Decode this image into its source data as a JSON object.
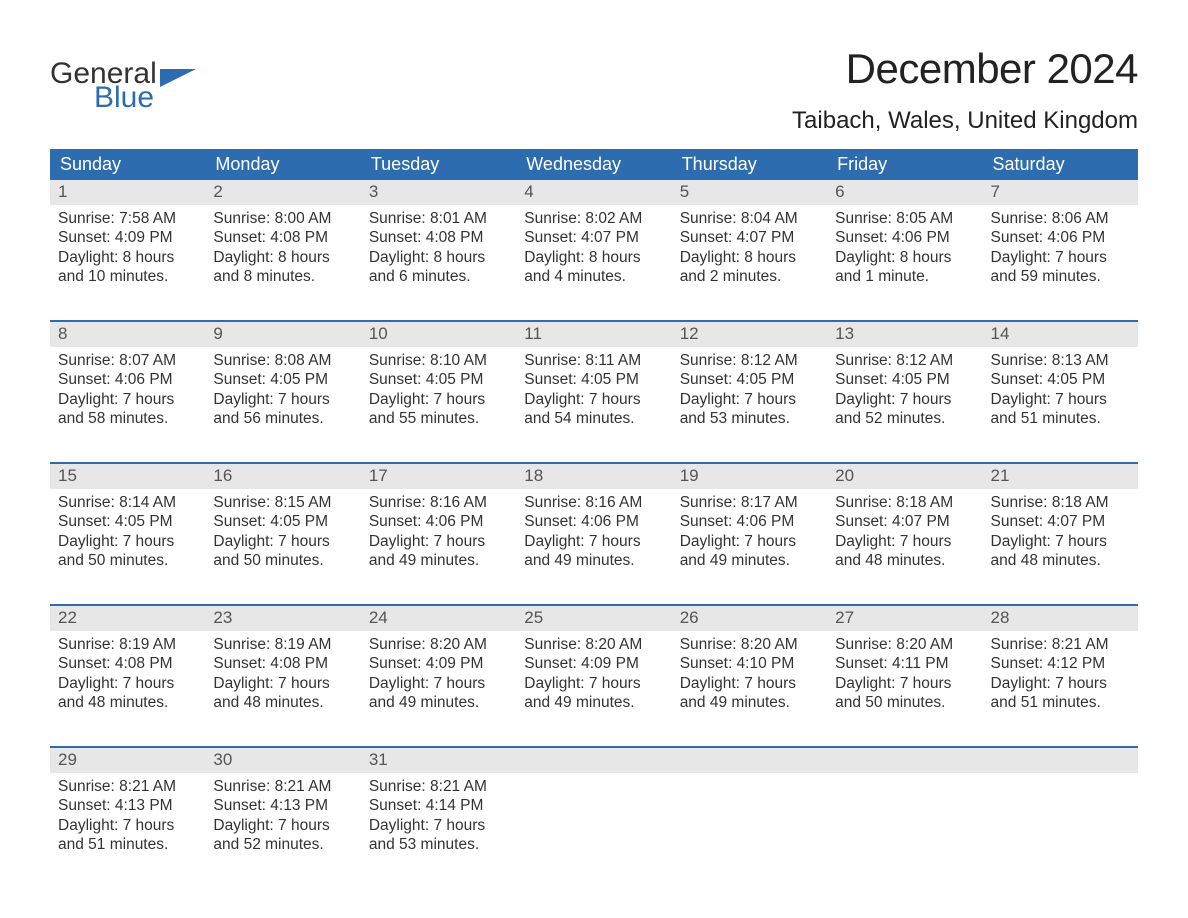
{
  "logo": {
    "text_general": "General",
    "text_blue": "Blue",
    "general_color": "#333333",
    "blue_color": "#2e6cb0"
  },
  "title": "December 2024",
  "location": "Taibach, Wales, United Kingdom",
  "colors": {
    "header_bg": "#2e6cb0",
    "header_text": "#ffffff",
    "daynum_bg": "#e7e7e7",
    "daynum_text": "#555555",
    "body_text": "#333333",
    "row_border": "#2e6cb0",
    "background": "#ffffff"
  },
  "fonts": {
    "title_size": 42,
    "location_size": 24,
    "dayheader_size": 18,
    "daynum_size": 17,
    "content_size": 15.5
  },
  "day_headers": [
    "Sunday",
    "Monday",
    "Tuesday",
    "Wednesday",
    "Thursday",
    "Friday",
    "Saturday"
  ],
  "weeks": [
    [
      {
        "day": "1",
        "sunrise": "Sunrise: 7:58 AM",
        "sunset": "Sunset: 4:09 PM",
        "dl1": "Daylight: 8 hours",
        "dl2": "and 10 minutes."
      },
      {
        "day": "2",
        "sunrise": "Sunrise: 8:00 AM",
        "sunset": "Sunset: 4:08 PM",
        "dl1": "Daylight: 8 hours",
        "dl2": "and 8 minutes."
      },
      {
        "day": "3",
        "sunrise": "Sunrise: 8:01 AM",
        "sunset": "Sunset: 4:08 PM",
        "dl1": "Daylight: 8 hours",
        "dl2": "and 6 minutes."
      },
      {
        "day": "4",
        "sunrise": "Sunrise: 8:02 AM",
        "sunset": "Sunset: 4:07 PM",
        "dl1": "Daylight: 8 hours",
        "dl2": "and 4 minutes."
      },
      {
        "day": "5",
        "sunrise": "Sunrise: 8:04 AM",
        "sunset": "Sunset: 4:07 PM",
        "dl1": "Daylight: 8 hours",
        "dl2": "and 2 minutes."
      },
      {
        "day": "6",
        "sunrise": "Sunrise: 8:05 AM",
        "sunset": "Sunset: 4:06 PM",
        "dl1": "Daylight: 8 hours",
        "dl2": "and 1 minute."
      },
      {
        "day": "7",
        "sunrise": "Sunrise: 8:06 AM",
        "sunset": "Sunset: 4:06 PM",
        "dl1": "Daylight: 7 hours",
        "dl2": "and 59 minutes."
      }
    ],
    [
      {
        "day": "8",
        "sunrise": "Sunrise: 8:07 AM",
        "sunset": "Sunset: 4:06 PM",
        "dl1": "Daylight: 7 hours",
        "dl2": "and 58 minutes."
      },
      {
        "day": "9",
        "sunrise": "Sunrise: 8:08 AM",
        "sunset": "Sunset: 4:05 PM",
        "dl1": "Daylight: 7 hours",
        "dl2": "and 56 minutes."
      },
      {
        "day": "10",
        "sunrise": "Sunrise: 8:10 AM",
        "sunset": "Sunset: 4:05 PM",
        "dl1": "Daylight: 7 hours",
        "dl2": "and 55 minutes."
      },
      {
        "day": "11",
        "sunrise": "Sunrise: 8:11 AM",
        "sunset": "Sunset: 4:05 PM",
        "dl1": "Daylight: 7 hours",
        "dl2": "and 54 minutes."
      },
      {
        "day": "12",
        "sunrise": "Sunrise: 8:12 AM",
        "sunset": "Sunset: 4:05 PM",
        "dl1": "Daylight: 7 hours",
        "dl2": "and 53 minutes."
      },
      {
        "day": "13",
        "sunrise": "Sunrise: 8:12 AM",
        "sunset": "Sunset: 4:05 PM",
        "dl1": "Daylight: 7 hours",
        "dl2": "and 52 minutes."
      },
      {
        "day": "14",
        "sunrise": "Sunrise: 8:13 AM",
        "sunset": "Sunset: 4:05 PM",
        "dl1": "Daylight: 7 hours",
        "dl2": "and 51 minutes."
      }
    ],
    [
      {
        "day": "15",
        "sunrise": "Sunrise: 8:14 AM",
        "sunset": "Sunset: 4:05 PM",
        "dl1": "Daylight: 7 hours",
        "dl2": "and 50 minutes."
      },
      {
        "day": "16",
        "sunrise": "Sunrise: 8:15 AM",
        "sunset": "Sunset: 4:05 PM",
        "dl1": "Daylight: 7 hours",
        "dl2": "and 50 minutes."
      },
      {
        "day": "17",
        "sunrise": "Sunrise: 8:16 AM",
        "sunset": "Sunset: 4:06 PM",
        "dl1": "Daylight: 7 hours",
        "dl2": "and 49 minutes."
      },
      {
        "day": "18",
        "sunrise": "Sunrise: 8:16 AM",
        "sunset": "Sunset: 4:06 PM",
        "dl1": "Daylight: 7 hours",
        "dl2": "and 49 minutes."
      },
      {
        "day": "19",
        "sunrise": "Sunrise: 8:17 AM",
        "sunset": "Sunset: 4:06 PM",
        "dl1": "Daylight: 7 hours",
        "dl2": "and 49 minutes."
      },
      {
        "day": "20",
        "sunrise": "Sunrise: 8:18 AM",
        "sunset": "Sunset: 4:07 PM",
        "dl1": "Daylight: 7 hours",
        "dl2": "and 48 minutes."
      },
      {
        "day": "21",
        "sunrise": "Sunrise: 8:18 AM",
        "sunset": "Sunset: 4:07 PM",
        "dl1": "Daylight: 7 hours",
        "dl2": "and 48 minutes."
      }
    ],
    [
      {
        "day": "22",
        "sunrise": "Sunrise: 8:19 AM",
        "sunset": "Sunset: 4:08 PM",
        "dl1": "Daylight: 7 hours",
        "dl2": "and 48 minutes."
      },
      {
        "day": "23",
        "sunrise": "Sunrise: 8:19 AM",
        "sunset": "Sunset: 4:08 PM",
        "dl1": "Daylight: 7 hours",
        "dl2": "and 48 minutes."
      },
      {
        "day": "24",
        "sunrise": "Sunrise: 8:20 AM",
        "sunset": "Sunset: 4:09 PM",
        "dl1": "Daylight: 7 hours",
        "dl2": "and 49 minutes."
      },
      {
        "day": "25",
        "sunrise": "Sunrise: 8:20 AM",
        "sunset": "Sunset: 4:09 PM",
        "dl1": "Daylight: 7 hours",
        "dl2": "and 49 minutes."
      },
      {
        "day": "26",
        "sunrise": "Sunrise: 8:20 AM",
        "sunset": "Sunset: 4:10 PM",
        "dl1": "Daylight: 7 hours",
        "dl2": "and 49 minutes."
      },
      {
        "day": "27",
        "sunrise": "Sunrise: 8:20 AM",
        "sunset": "Sunset: 4:11 PM",
        "dl1": "Daylight: 7 hours",
        "dl2": "and 50 minutes."
      },
      {
        "day": "28",
        "sunrise": "Sunrise: 8:21 AM",
        "sunset": "Sunset: 4:12 PM",
        "dl1": "Daylight: 7 hours",
        "dl2": "and 51 minutes."
      }
    ],
    [
      {
        "day": "29",
        "sunrise": "Sunrise: 8:21 AM",
        "sunset": "Sunset: 4:13 PM",
        "dl1": "Daylight: 7 hours",
        "dl2": "and 51 minutes."
      },
      {
        "day": "30",
        "sunrise": "Sunrise: 8:21 AM",
        "sunset": "Sunset: 4:13 PM",
        "dl1": "Daylight: 7 hours",
        "dl2": "and 52 minutes."
      },
      {
        "day": "31",
        "sunrise": "Sunrise: 8:21 AM",
        "sunset": "Sunset: 4:14 PM",
        "dl1": "Daylight: 7 hours",
        "dl2": "and 53 minutes."
      },
      null,
      null,
      null,
      null
    ]
  ]
}
